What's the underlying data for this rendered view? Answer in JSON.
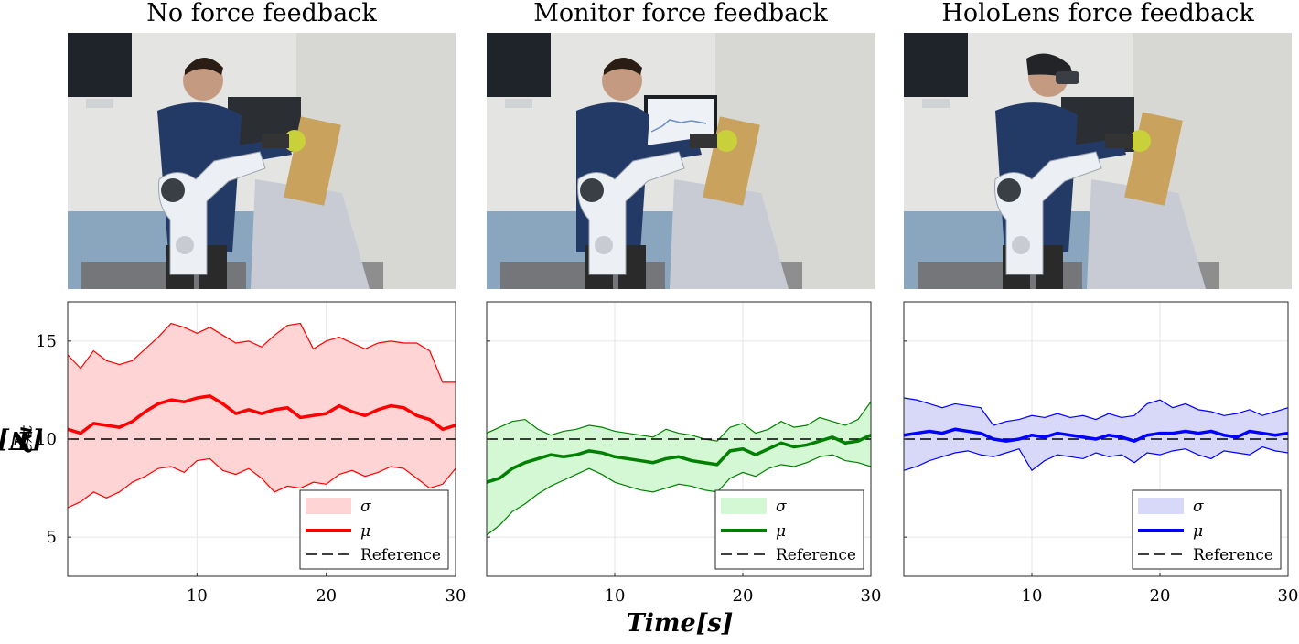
{
  "panels": [
    {
      "title": "No force feedback",
      "photo_desc": "operator without force feedback"
    },
    {
      "title": "Monitor force feedback",
      "photo_desc": "operator with monitor showing force plot"
    },
    {
      "title": "HoloLens force feedback",
      "photo_desc": "operator wearing HoloLens headset"
    }
  ],
  "ylabel": "F_ext[N]",
  "ylabel_main": "F",
  "ylabel_sub": "ext",
  "ylabel_rest": "[N]",
  "xlabel": "Time[s]",
  "legend": {
    "sigma": "σ",
    "mu": "μ",
    "reference": "Reference"
  },
  "colors": {
    "red": "#ff0000",
    "red_fill": "#ffd4d4",
    "green": "#008000",
    "green_fill": "#d4f7d4",
    "blue": "#0000ff",
    "blue_fill": "#d8d8f8",
    "reference": "#000000"
  },
  "chart_data": [
    {
      "type": "area",
      "title": "No force feedback",
      "xlim": [
        0,
        30
      ],
      "ylim": [
        3,
        17
      ],
      "xticks": [
        10,
        20,
        30
      ],
      "yticks": [
        5,
        10,
        15
      ],
      "grid": true,
      "legend_position": "bottom-right",
      "reference": 10,
      "x": [
        0,
        1,
        2,
        3,
        4,
        5,
        6,
        7,
        8,
        9,
        10,
        11,
        12,
        13,
        14,
        15,
        16,
        17,
        18,
        19,
        20,
        21,
        22,
        23,
        24,
        25,
        26,
        27,
        28,
        29,
        30
      ],
      "mu": [
        10.5,
        10.3,
        10.8,
        10.7,
        10.6,
        10.9,
        11.4,
        11.8,
        12.0,
        11.9,
        12.1,
        12.2,
        11.8,
        11.3,
        11.5,
        11.3,
        11.5,
        11.6,
        11.1,
        11.2,
        11.3,
        11.7,
        11.4,
        11.2,
        11.5,
        11.7,
        11.6,
        11.2,
        11.0,
        10.5,
        10.7
      ],
      "upper": [
        14.3,
        13.6,
        14.5,
        14.0,
        13.8,
        14.0,
        14.6,
        15.2,
        15.9,
        15.7,
        15.4,
        15.7,
        15.3,
        14.9,
        15.0,
        14.7,
        15.3,
        15.8,
        15.9,
        14.6,
        15.0,
        15.2,
        14.9,
        14.6,
        14.9,
        15.0,
        14.9,
        14.9,
        14.5,
        12.9,
        12.9
      ],
      "lower": [
        6.5,
        6.8,
        7.3,
        7.0,
        7.3,
        7.8,
        8.1,
        8.5,
        8.6,
        8.3,
        8.9,
        9.0,
        8.4,
        8.2,
        8.5,
        8.0,
        7.3,
        7.6,
        7.5,
        7.8,
        7.7,
        8.2,
        8.4,
        8.1,
        8.3,
        8.6,
        8.5,
        8.0,
        7.5,
        7.7,
        8.5
      ]
    },
    {
      "type": "area",
      "title": "Monitor force feedback",
      "xlim": [
        0,
        30
      ],
      "ylim": [
        3,
        17
      ],
      "xticks": [
        10,
        20,
        30
      ],
      "yticks": [
        5,
        10,
        15
      ],
      "grid": true,
      "legend_position": "bottom-right",
      "reference": 10,
      "x": [
        0,
        1,
        2,
        3,
        4,
        5,
        6,
        7,
        8,
        9,
        10,
        11,
        12,
        13,
        14,
        15,
        16,
        17,
        18,
        19,
        20,
        21,
        22,
        23,
        24,
        25,
        26,
        27,
        28,
        29,
        30
      ],
      "mu": [
        7.8,
        8.0,
        8.5,
        8.8,
        9.0,
        9.2,
        9.1,
        9.2,
        9.4,
        9.3,
        9.1,
        9.0,
        8.9,
        8.8,
        9.0,
        9.1,
        8.9,
        8.8,
        8.7,
        9.4,
        9.5,
        9.2,
        9.5,
        9.8,
        9.6,
        9.7,
        9.9,
        10.1,
        9.8,
        9.9,
        10.2
      ],
      "upper": [
        10.3,
        10.6,
        10.9,
        11.0,
        10.5,
        10.2,
        10.4,
        10.5,
        10.7,
        10.6,
        10.4,
        10.3,
        10.2,
        10.1,
        10.5,
        10.3,
        10.2,
        10.0,
        9.9,
        10.6,
        10.8,
        10.3,
        10.5,
        10.9,
        10.6,
        10.7,
        11.1,
        10.9,
        10.7,
        11.0,
        11.9
      ],
      "lower": [
        5.1,
        5.6,
        6.3,
        6.7,
        7.2,
        7.6,
        7.9,
        8.2,
        8.5,
        8.2,
        7.8,
        7.6,
        7.4,
        7.3,
        7.5,
        7.7,
        7.6,
        7.4,
        7.3,
        8.0,
        8.3,
        8.1,
        8.5,
        8.7,
        8.6,
        8.8,
        9.1,
        9.2,
        8.9,
        8.8,
        8.6
      ]
    },
    {
      "type": "area",
      "title": "HoloLens force feedback",
      "xlim": [
        0,
        30
      ],
      "ylim": [
        3,
        17
      ],
      "xticks": [
        10,
        20,
        30
      ],
      "yticks": [
        5,
        10,
        15
      ],
      "grid": true,
      "legend_position": "bottom-right",
      "reference": 10,
      "x": [
        0,
        1,
        2,
        3,
        4,
        5,
        6,
        7,
        8,
        9,
        10,
        11,
        12,
        13,
        14,
        15,
        16,
        17,
        18,
        19,
        20,
        21,
        22,
        23,
        24,
        25,
        26,
        27,
        28,
        29,
        30
      ],
      "mu": [
        10.2,
        10.3,
        10.4,
        10.3,
        10.5,
        10.4,
        10.3,
        10.0,
        9.9,
        10.0,
        10.2,
        10.1,
        10.3,
        10.2,
        10.1,
        10.0,
        10.2,
        10.1,
        9.9,
        10.2,
        10.3,
        10.3,
        10.4,
        10.3,
        10.4,
        10.2,
        10.1,
        10.4,
        10.3,
        10.2,
        10.3
      ],
      "upper": [
        12.1,
        12.0,
        11.8,
        11.6,
        11.8,
        11.7,
        11.6,
        10.7,
        10.9,
        11.0,
        11.2,
        11.1,
        11.3,
        11.1,
        11.2,
        11.0,
        11.3,
        11.1,
        11.2,
        11.8,
        12.0,
        11.6,
        11.8,
        11.5,
        11.4,
        11.2,
        11.3,
        11.5,
        11.2,
        11.4,
        11.6
      ],
      "lower": [
        8.4,
        8.6,
        8.9,
        9.1,
        9.3,
        9.4,
        9.2,
        9.1,
        9.3,
        9.5,
        8.4,
        8.9,
        9.2,
        9.1,
        9.0,
        9.3,
        9.1,
        9.2,
        8.8,
        9.3,
        9.2,
        9.4,
        9.5,
        9.2,
        9.0,
        9.4,
        9.3,
        9.2,
        9.6,
        9.4,
        9.3
      ]
    }
  ]
}
